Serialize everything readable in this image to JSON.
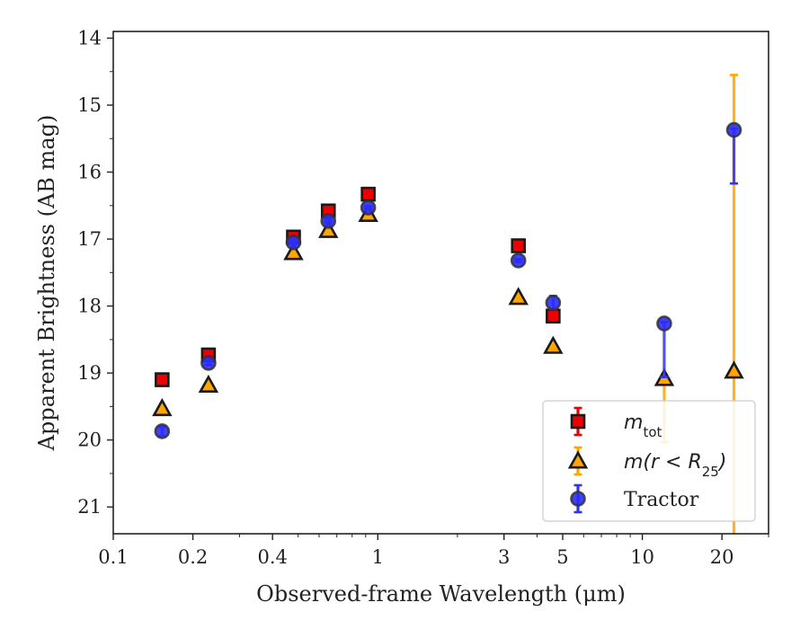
{
  "chart_data": {
    "type": "scatter",
    "xlabel": "Observed-frame Wavelength (μm)",
    "ylabel": "Apparent Brightness (AB mag)",
    "x_scale": "log",
    "xlim": [
      0.1,
      30
    ],
    "ylim": [
      21.4,
      13.9
    ],
    "y_inverted": true,
    "x_ticks": [
      {
        "value": 0.1,
        "label": "0.1"
      },
      {
        "value": 0.2,
        "label": "0.2"
      },
      {
        "value": 0.4,
        "label": "0.4"
      },
      {
        "value": 1,
        "label": "1"
      },
      {
        "value": 3,
        "label": "3"
      },
      {
        "value": 5,
        "label": "5"
      },
      {
        "value": 10,
        "label": "10"
      },
      {
        "value": 20,
        "label": "20"
      }
    ],
    "y_ticks": [
      {
        "value": 14,
        "label": "14"
      },
      {
        "value": 15,
        "label": "15"
      },
      {
        "value": 16,
        "label": "16"
      },
      {
        "value": 17,
        "label": "17"
      },
      {
        "value": 18,
        "label": "18"
      },
      {
        "value": 19,
        "label": "19"
      },
      {
        "value": 20,
        "label": "20"
      },
      {
        "value": 21,
        "label": "21"
      }
    ],
    "legend": {
      "position": "lower-right",
      "entries": [
        {
          "key": "mtot",
          "label_main": "m",
          "label_sub": "tot",
          "label_tail": ""
        },
        {
          "key": "mr25",
          "label_main": "m(r < R",
          "label_sub": "25",
          "label_tail": ")"
        },
        {
          "key": "tractor",
          "label_main": "Tractor",
          "label_sub": "",
          "label_tail": ""
        }
      ]
    },
    "series": [
      {
        "key": "mtot",
        "marker": "square",
        "color": "#ee0000",
        "err_color": "#ee0000",
        "points": [
          {
            "x": 0.153,
            "y": 19.1,
            "err": 0.02
          },
          {
            "x": 0.229,
            "y": 18.73,
            "err": 0.02
          },
          {
            "x": 0.48,
            "y": 16.97,
            "err": 0.02
          },
          {
            "x": 0.65,
            "y": 16.58,
            "err": 0.02
          },
          {
            "x": 0.92,
            "y": 16.33,
            "err": 0.02
          },
          {
            "x": 3.4,
            "y": 17.1,
            "err": 0.02
          },
          {
            "x": 4.6,
            "y": 18.15,
            "err": 0.02
          }
        ]
      },
      {
        "key": "mr25",
        "marker": "triangle",
        "color": "#ffa500",
        "err_color": "#ffa500",
        "points": [
          {
            "x": 0.153,
            "y": 19.53,
            "err": 0.02
          },
          {
            "x": 0.229,
            "y": 19.18,
            "err": 0.02
          },
          {
            "x": 0.48,
            "y": 17.2,
            "err": 0.02
          },
          {
            "x": 0.65,
            "y": 16.87,
            "err": 0.02
          },
          {
            "x": 0.92,
            "y": 16.63,
            "err": 0.02
          },
          {
            "x": 3.4,
            "y": 17.87,
            "err": 0.02
          },
          {
            "x": 4.6,
            "y": 18.6,
            "err": 0.02
          },
          {
            "x": 12.1,
            "y": 19.08,
            "err_low": 0.02,
            "err_high": 0.95
          },
          {
            "x": 22.2,
            "y": 18.97,
            "err_low": 4.42,
            "err_high": 4.42
          }
        ]
      },
      {
        "key": "tractor",
        "marker": "circle",
        "color": "#2b2bff",
        "err_color": "#3333ee",
        "points": [
          {
            "x": 0.153,
            "y": 19.87,
            "err": 0.07
          },
          {
            "x": 0.229,
            "y": 18.85,
            "err": 0.03
          },
          {
            "x": 0.48,
            "y": 17.05,
            "err": 0.02
          },
          {
            "x": 0.65,
            "y": 16.73,
            "err": 0.02
          },
          {
            "x": 0.92,
            "y": 16.53,
            "err": 0.02
          },
          {
            "x": 3.4,
            "y": 17.32,
            "err": 0.02
          },
          {
            "x": 4.6,
            "y": 17.95,
            "err": 0.1
          },
          {
            "x": 12.1,
            "y": 18.26,
            "err_low": 0.02,
            "err_high": 0.8
          },
          {
            "x": 22.2,
            "y": 15.37,
            "err_low": 0.02,
            "err_high": 0.8
          }
        ]
      }
    ]
  }
}
